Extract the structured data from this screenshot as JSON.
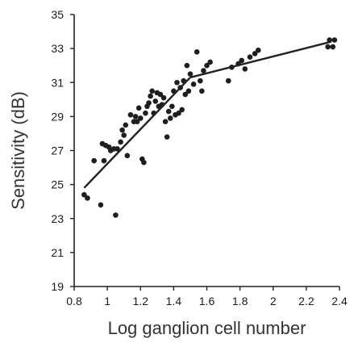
{
  "chart_data": {
    "type": "scatter",
    "title": "",
    "xlabel": "Log ganglion cell number",
    "ylabel": "Sensitivity (dB)",
    "xlim": [
      0.8,
      2.4
    ],
    "ylim": [
      19,
      35
    ],
    "xticks": [
      0.8,
      1.0,
      1.2,
      1.4,
      1.6,
      1.8,
      2.0,
      2.2,
      2.4
    ],
    "xtick_labels": [
      "0.8",
      "1",
      "1.2",
      "1.4",
      "1.6",
      "1.8",
      "2",
      "2.2",
      "2.4"
    ],
    "yticks": [
      19,
      21,
      23,
      25,
      27,
      29,
      31,
      33,
      35
    ],
    "ytick_labels": [
      "19",
      "21",
      "23",
      "25",
      "27",
      "29",
      "31",
      "33",
      "35"
    ],
    "grid": false,
    "points": {
      "x": [
        0.86,
        0.88,
        0.92,
        0.96,
        0.97,
        0.98,
        0.99,
        1.01,
        1.02,
        1.04,
        1.05,
        1.06,
        1.08,
        1.09,
        1.1,
        1.11,
        1.12,
        1.14,
        1.16,
        1.17,
        1.18,
        1.19,
        1.2,
        1.21,
        1.22,
        1.23,
        1.24,
        1.25,
        1.26,
        1.27,
        1.28,
        1.29,
        1.3,
        1.31,
        1.32,
        1.33,
        1.34,
        1.35,
        1.36,
        1.37,
        1.38,
        1.39,
        1.4,
        1.41,
        1.42,
        1.43,
        1.44,
        1.45,
        1.46,
        1.47,
        1.48,
        1.49,
        1.5,
        1.52,
        1.54,
        1.56,
        1.57,
        1.58,
        1.6,
        1.62,
        1.73,
        1.75,
        1.79,
        1.81,
        1.83,
        1.86,
        1.89,
        1.91,
        2.33,
        2.34,
        2.36,
        2.37
      ],
      "y": [
        24.4,
        24.2,
        26.4,
        23.8,
        27.4,
        26.4,
        27.3,
        27.2,
        27.0,
        27.1,
        23.2,
        27.1,
        27.5,
        28.2,
        27.9,
        28.5,
        26.7,
        29.1,
        28.7,
        29.0,
        28.7,
        29.5,
        28.9,
        26.5,
        26.3,
        29.2,
        29.6,
        29.8,
        30.2,
        30.5,
        29.2,
        29.9,
        30.4,
        29.6,
        30.3,
        29.7,
        30.1,
        28.7,
        27.8,
        29.3,
        28.9,
        29.6,
        30.5,
        29.1,
        31.0,
        29.2,
        30.7,
        29.4,
        31.1,
        30.3,
        32.0,
        30.5,
        31.5,
        30.9,
        32.8,
        31.1,
        30.5,
        31.7,
        32.0,
        32.2,
        31.1,
        31.9,
        32.1,
        32.3,
        31.8,
        32.5,
        32.7,
        32.9,
        33.1,
        33.5,
        33.1,
        33.5
      ]
    },
    "fit_line": {
      "x": [
        0.86,
        1.5,
        2.35
      ],
      "y": [
        24.8,
        31.3,
        33.4
      ]
    }
  }
}
